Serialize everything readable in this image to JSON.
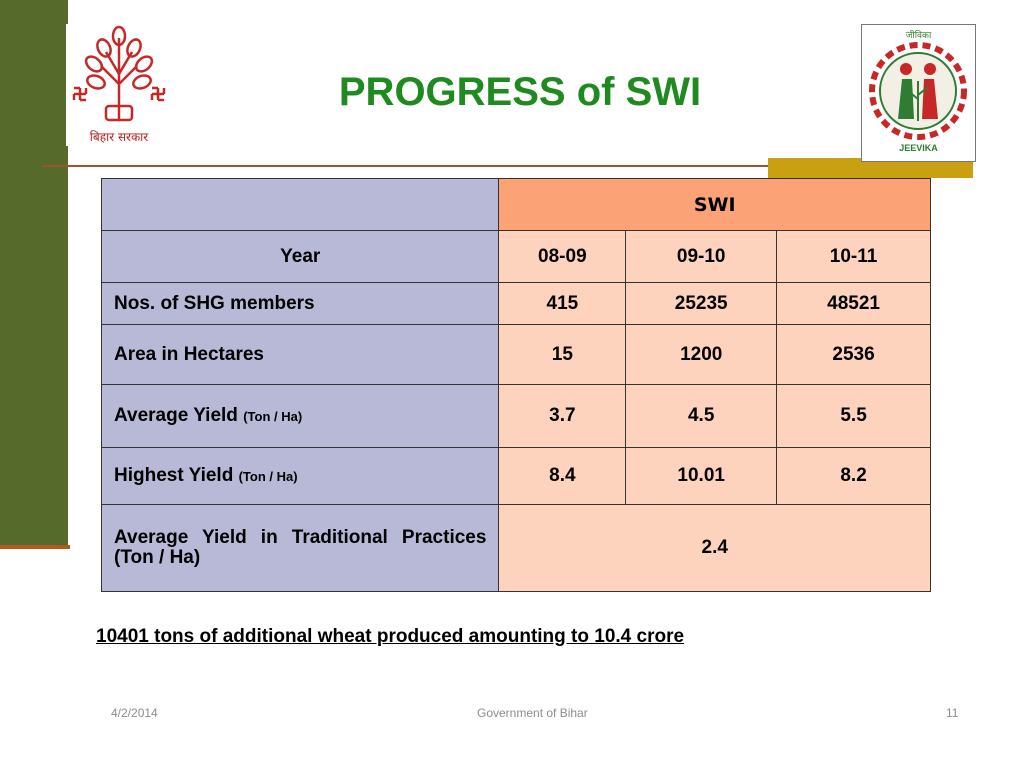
{
  "slide": {
    "title": "PROGRESS of SWI",
    "logo_left_caption": "बिहार सरकार",
    "logo_right_top": "जीविका",
    "logo_right_caption": "JEEVIKA"
  },
  "table": {
    "group_header": "SWI",
    "year_label": "Year",
    "years": [
      "08-09",
      "09-10",
      "10-11"
    ],
    "rows": [
      {
        "label": "Nos. of SHG members",
        "unit": "",
        "values": [
          "415",
          "25235",
          "48521"
        ]
      },
      {
        "label": "Area in Hectares",
        "unit": "",
        "values": [
          "15",
          "1200",
          "2536"
        ]
      },
      {
        "label": "Average Yield",
        "unit": "(Ton / Ha)",
        "values": [
          "3.7",
          "4.5",
          "5.5"
        ]
      },
      {
        "label": "Highest Yield",
        "unit": "(Ton / Ha)",
        "values": [
          "8.4",
          "10.01",
          "8.2"
        ]
      }
    ],
    "traditional_label": "Average Yield in Traditional Practices (Ton / Ha)",
    "traditional_value": "2.4"
  },
  "footnote": "10401 tons of additional wheat produced amounting to 10.4 crore",
  "footer": {
    "date": "4/2/2014",
    "center": "Government of Bihar",
    "page": "11"
  },
  "colors": {
    "title": "#1f8a1f",
    "side_bar": "#566b2b",
    "label_cell": "#b8b9d6",
    "value_cell": "#fdd3bd",
    "header_cell": "#fba277"
  }
}
